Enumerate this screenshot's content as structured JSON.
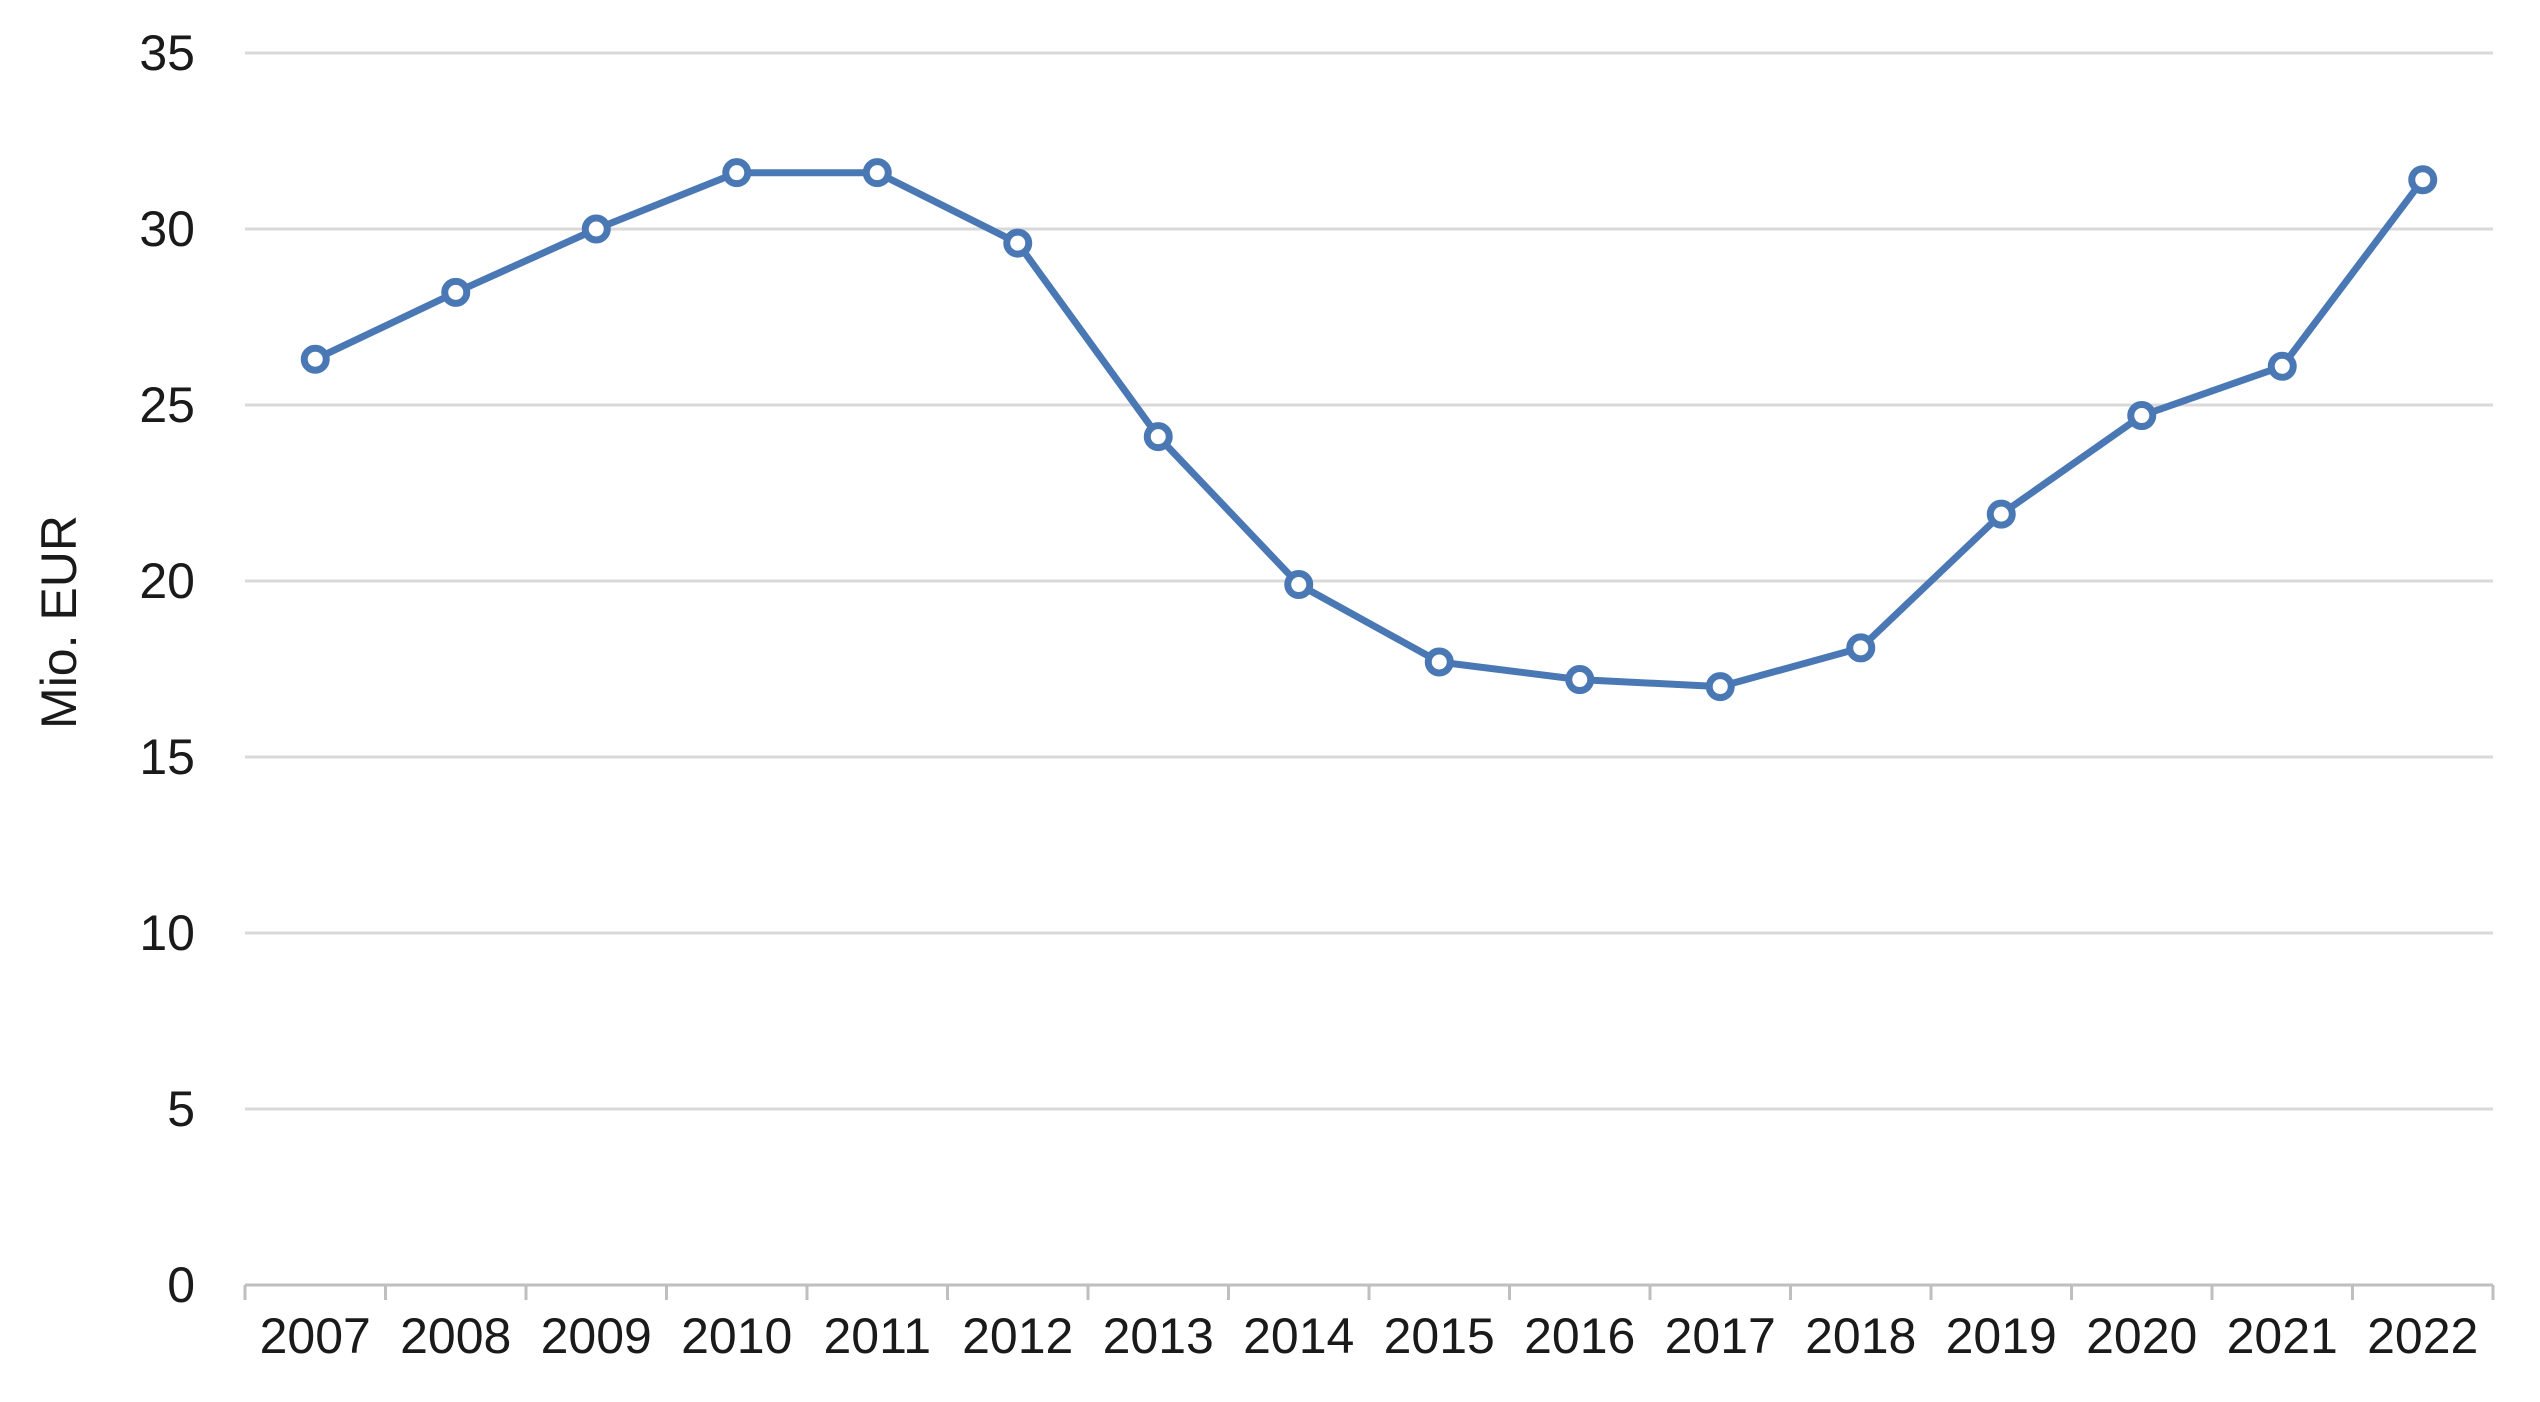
{
  "chart_data": {
    "type": "line",
    "title": "",
    "xlabel": "",
    "ylabel": "Mio. EUR",
    "ylim": [
      0,
      35
    ],
    "yticks": [
      0,
      5,
      10,
      15,
      20,
      25,
      30,
      35
    ],
    "categories": [
      "2007",
      "2008",
      "2009",
      "2010",
      "2011",
      "2012",
      "2013",
      "2014",
      "2015",
      "2016",
      "2017",
      "2018",
      "2019",
      "2020",
      "2021",
      "2022"
    ],
    "series": [
      {
        "values": [
          26.3,
          28.2,
          30.0,
          31.6,
          31.6,
          29.6,
          24.1,
          19.9,
          17.7,
          17.2,
          17.0,
          18.1,
          21.9,
          24.7,
          26.1,
          31.4
        ]
      }
    ],
    "grid": true,
    "legend": "none",
    "colors": {
      "line": "#4a78b4",
      "grid": "#d9d9d9",
      "axis": "#bfbfbf",
      "marker_fill": "#ffffff"
    }
  }
}
